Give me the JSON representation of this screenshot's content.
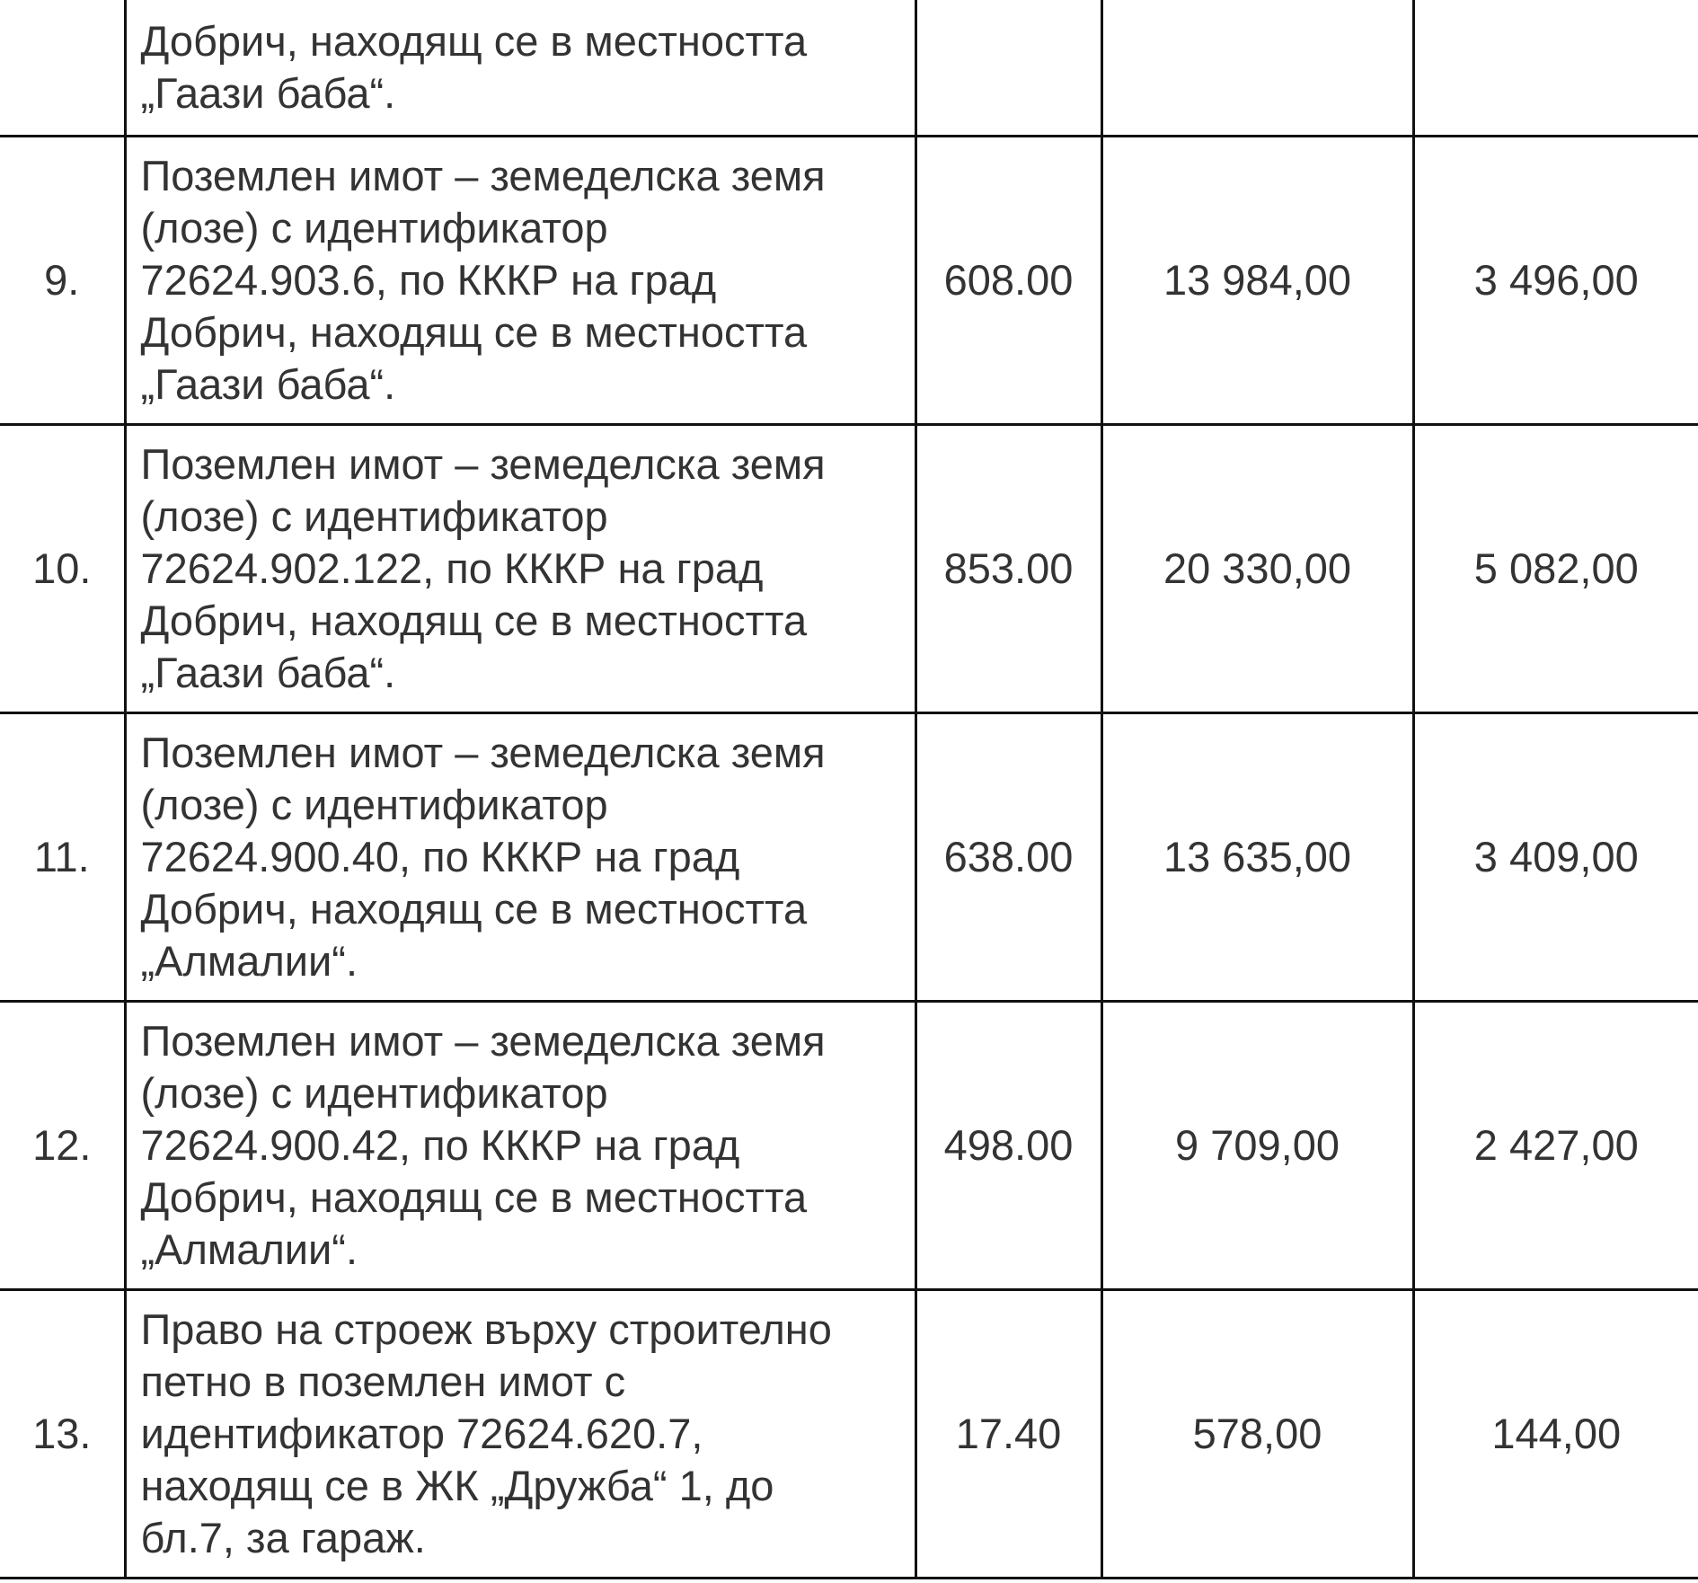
{
  "table": {
    "first_row": {
      "lines": [
        "Добрич, находящ се в местността",
        "„Гаази баба“."
      ]
    },
    "rows": [
      {
        "num": "9.",
        "lines": [
          "Поземлен имот – земеделска земя",
          "(лозе) с идентификатор",
          "72624.903.6, по КККР на град",
          "Добрич, находящ се в местността",
          "„Гаази баба“."
        ],
        "area": "608.00",
        "value": "13 984,00",
        "deposit": "3 496,00"
      },
      {
        "num": "10.",
        "lines": [
          "Поземлен имот – земеделска земя",
          "(лозе) с идентификатор",
          "72624.902.122, по КККР на град",
          "Добрич, находящ се в местността",
          "„Гаази баба“."
        ],
        "area": "853.00",
        "value": "20 330,00",
        "deposit": "5 082,00"
      },
      {
        "num": "11.",
        "lines": [
          "Поземлен имот – земеделска земя",
          "(лозе) с идентификатор",
          "72624.900.40, по КККР на град",
          "Добрич, находящ се в местността",
          "„Алмалии“."
        ],
        "area": "638.00",
        "value": "13 635,00",
        "deposit": "3 409,00"
      },
      {
        "num": "12.",
        "lines": [
          "Поземлен имот – земеделска земя",
          "(лозе) с идентификатор",
          "72624.900.42, по КККР на град",
          "Добрич, находящ се в местността",
          "„Алмалии“."
        ],
        "area": "498.00",
        "value": "9 709,00",
        "deposit": "2 427,00"
      },
      {
        "num": "13.",
        "lines": [
          "Право на строеж върху строително",
          "петно в поземлен имот с",
          "идентификатор 72624.620.7,",
          "находящ се в ЖК „Дружба“ 1, до",
          "бл.7, за гараж."
        ],
        "area": "17.40",
        "value": "578,00",
        "deposit": "144,00"
      }
    ]
  }
}
